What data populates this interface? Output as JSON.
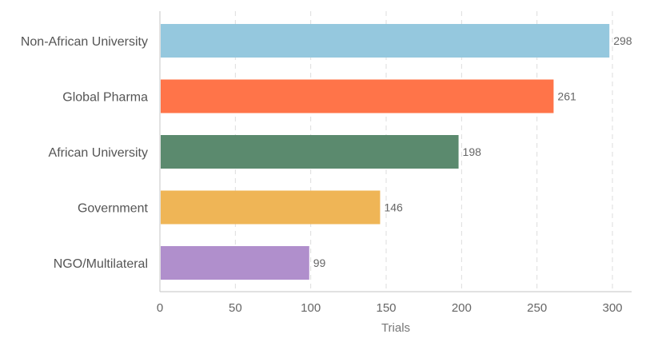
{
  "chart_data": {
    "type": "bar",
    "orientation": "horizontal",
    "categories": [
      "Non-African University",
      "Global Pharma",
      "African University",
      "Government",
      "NGO/Multilateral"
    ],
    "values": [
      298,
      261,
      198,
      146,
      99
    ],
    "colors": [
      "#95c8de",
      "#ff7449",
      "#5b8a6e",
      "#efb556",
      "#b08fcc"
    ],
    "xlabel": "Trials",
    "xlim": [
      0,
      300
    ],
    "xticks": [
      0,
      50,
      100,
      150,
      200,
      250,
      300
    ],
    "grid": true,
    "legend": "none"
  }
}
